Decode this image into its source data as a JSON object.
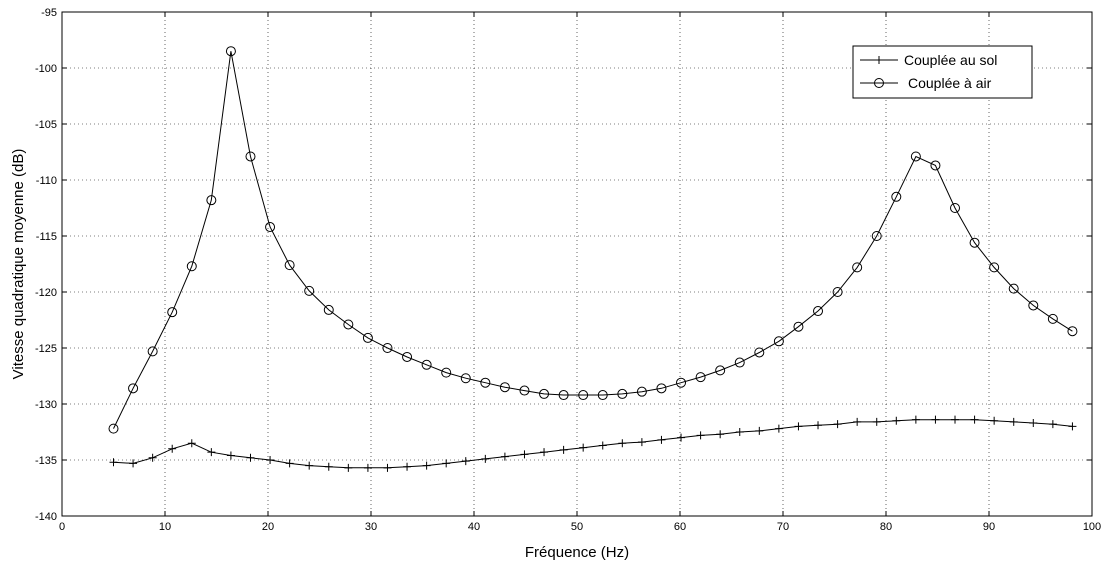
{
  "chart_data": {
    "type": "line",
    "title": "",
    "xlabel": "Fréquence (Hz)",
    "ylabel": "Vitesse quadratique moyenne (dB)",
    "xlim": [
      0,
      100
    ],
    "ylim": [
      -140,
      -95
    ],
    "xticks": [
      0,
      10,
      20,
      30,
      40,
      50,
      60,
      70,
      80,
      90,
      100
    ],
    "yticks": [
      -95,
      -100,
      -105,
      -110,
      -115,
      -120,
      -125,
      -130,
      -135,
      -140
    ],
    "grid": true,
    "legend_position": "top-right",
    "colors": {
      "line": "#000000",
      "grid": "#000000",
      "background": "#ffffff"
    },
    "series": [
      {
        "name": "Couplée au sol",
        "marker": "plus",
        "x": [
          5,
          6.9,
          8.8,
          10.7,
          12.6,
          14.5,
          16.4,
          18.3,
          20.2,
          22.1,
          24,
          25.9,
          27.8,
          29.7,
          31.6,
          33.5,
          35.4,
          37.3,
          39.2,
          41.1,
          43,
          44.9,
          46.8,
          48.7,
          50.6,
          52.5,
          54.4,
          56.3,
          58.2,
          60.1,
          62,
          63.9,
          65.8,
          67.7,
          69.6,
          71.5,
          73.4,
          75.3,
          77.2,
          79.1,
          81,
          82.9,
          84.8,
          86.7,
          88.6,
          90.5,
          92.4,
          94.3,
          96.2,
          98.1
        ],
        "y": [
          -135.2,
          -135.3,
          -134.8,
          -134.0,
          -133.5,
          -134.3,
          -134.6,
          -134.8,
          -135.0,
          -135.3,
          -135.5,
          -135.6,
          -135.7,
          -135.7,
          -135.7,
          -135.6,
          -135.5,
          -135.3,
          -135.1,
          -134.9,
          -134.7,
          -134.5,
          -134.3,
          -134.1,
          -133.9,
          -133.7,
          -133.5,
          -133.4,
          -133.2,
          -133.0,
          -132.8,
          -132.7,
          -132.5,
          -132.4,
          -132.2,
          -132.0,
          -131.9,
          -131.8,
          -131.6,
          -131.6,
          -131.5,
          -131.4,
          -131.4,
          -131.4,
          -131.4,
          -131.5,
          -131.6,
          -131.7,
          -131.8,
          -132.0
        ]
      },
      {
        "name": "Couplée à air",
        "marker": "circle",
        "x": [
          5,
          6.9,
          8.8,
          10.7,
          12.6,
          14.5,
          16.4,
          18.3,
          20.2,
          22.1,
          24,
          25.9,
          27.8,
          29.7,
          31.6,
          33.5,
          35.4,
          37.3,
          39.2,
          41.1,
          43,
          44.9,
          46.8,
          48.7,
          50.6,
          52.5,
          54.4,
          56.3,
          58.2,
          60.1,
          62,
          63.9,
          65.8,
          67.7,
          69.6,
          71.5,
          73.4,
          75.3,
          77.2,
          79.1,
          81,
          82.9,
          84.8,
          86.7,
          88.6,
          90.5,
          92.4,
          94.3,
          96.2,
          98.1
        ],
        "y": [
          -132.2,
          -128.6,
          -125.3,
          -121.8,
          -117.7,
          -111.8,
          -98.5,
          -107.9,
          -114.2,
          -117.6,
          -119.9,
          -121.6,
          -122.9,
          -124.1,
          -125.0,
          -125.8,
          -126.5,
          -127.2,
          -127.7,
          -128.1,
          -128.5,
          -128.8,
          -129.1,
          -129.2,
          -129.2,
          -129.2,
          -129.1,
          -128.9,
          -128.6,
          -128.1,
          -127.6,
          -127.0,
          -126.3,
          -125.4,
          -124.4,
          -123.1,
          -121.7,
          -120.0,
          -117.8,
          -115.0,
          -111.5,
          -107.9,
          -108.7,
          -112.5,
          -115.6,
          -117.8,
          -119.7,
          -121.2,
          -122.4,
          -123.5
        ]
      }
    ]
  }
}
